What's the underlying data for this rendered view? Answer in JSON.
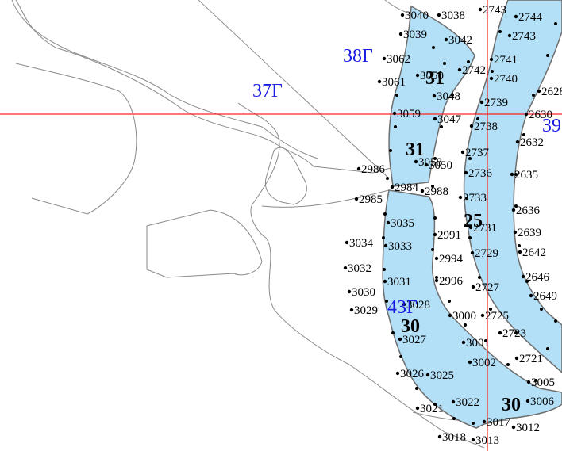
{
  "map": {
    "colors": {
      "plot_fill": "#b3e0f7",
      "plot_stroke": "#6e6e6e",
      "thin_line": "#8a8a8a",
      "grid_line": "#ff2020",
      "section_label": "#1a1ae6",
      "vertex": "#000000"
    },
    "section_labels": [
      "38Г",
      "37Г",
      "39",
      "43Г"
    ],
    "plot_numbers": [
      "31",
      "31",
      "25",
      "30",
      "30"
    ],
    "point_labels": [
      "3040",
      "3038",
      "2743",
      "2744",
      "3039",
      "3042",
      "2743",
      "38Г",
      "3062",
      "2741",
      "2742",
      "2740",
      "3061",
      "3050",
      "2628",
      "3048",
      "2739",
      "3059",
      "3047",
      "2738",
      "2630",
      "2632",
      "2737",
      "3058",
      "3050",
      "2986",
      "2736",
      "2635",
      "2984",
      "2988",
      "2733",
      "2985",
      "2636",
      "3035",
      "2991",
      "2731",
      "2639",
      "3034",
      "3033",
      "2642",
      "2994",
      "2729",
      "3032",
      "2646",
      "3031",
      "2996",
      "2727",
      "3030",
      "2649",
      "3028",
      "3029",
      "3000",
      "2725",
      "3027",
      "2723",
      "3001",
      "2721",
      "3002",
      "3026",
      "3025",
      "3005",
      "3006",
      "3021",
      "3022",
      "3012",
      "3017",
      "3018",
      "3013"
    ]
  }
}
